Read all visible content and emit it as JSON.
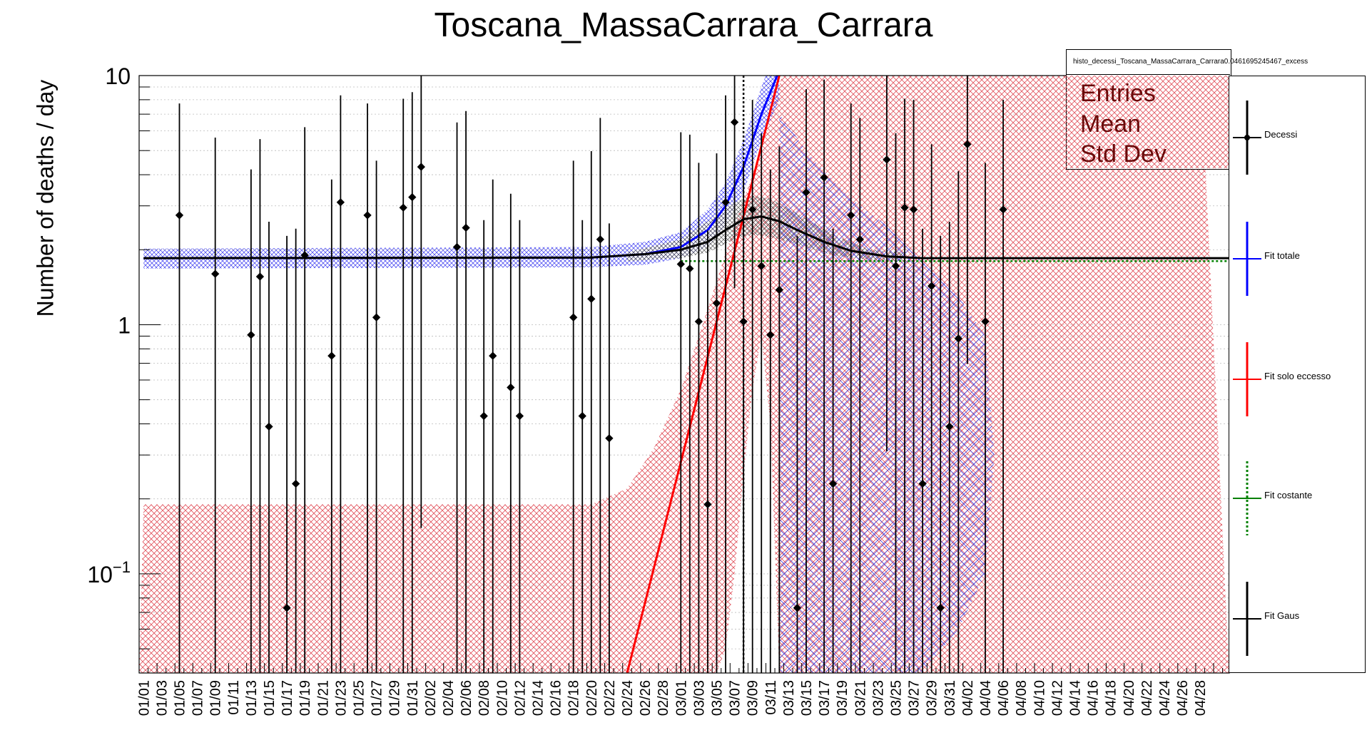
{
  "title": "Toscana_MassaCarrara_Carrara",
  "stats_box": {
    "title": "histo_decessi_Toscana_MassaCarrara_Carrara0.0461695245467_excess",
    "labels": [
      "Entries",
      "Mean",
      "Std Dev"
    ]
  },
  "legend": [
    {
      "label": "Decessi",
      "color": "#000000",
      "style": "points"
    },
    {
      "label": "Fit totale",
      "color": "#0000ff",
      "style": "line"
    },
    {
      "label": "Fit solo eccesso",
      "color": "#ff0000",
      "style": "line"
    },
    {
      "label": "Fit costante",
      "color": "#008000",
      "style": "dotted"
    },
    {
      "label": "Fit Gaus",
      "color": "#000000",
      "style": "line"
    }
  ],
  "colors": {
    "excess_band": "#e0505a",
    "total_band": "#3a3af0",
    "gaus_band": "#404040",
    "total": "#0000ff",
    "excess": "#ff0000",
    "const": "#008000",
    "gaus": "#000000"
  },
  "chart_data": {
    "type": "scatter",
    "title": "Toscana_MassaCarrara_Carrara",
    "ylabel": "Number of deaths / day",
    "xlabel": "",
    "yscale": "log",
    "ylim": [
      0.04,
      10
    ],
    "y_tick_labels": [
      {
        "value": 0.1,
        "label": "10^-1"
      },
      {
        "value": 1,
        "label": "1"
      },
      {
        "value": 10,
        "label": "10"
      }
    ],
    "x_tick_labels": [
      "01/01",
      "01/03",
      "01/05",
      "01/07",
      "01/09",
      "01/11",
      "01/13",
      "01/15",
      "01/17",
      "01/19",
      "01/21",
      "01/23",
      "01/25",
      "01/27",
      "01/29",
      "01/31",
      "02/02",
      "02/04",
      "02/06",
      "02/08",
      "02/10",
      "02/12",
      "02/14",
      "02/16",
      "02/18",
      "02/20",
      "02/22",
      "02/24",
      "02/26",
      "02/28",
      "03/01",
      "03/03",
      "03/05",
      "03/07",
      "03/09",
      "03/11",
      "03/13",
      "03/15",
      "03/17",
      "03/19",
      "03/21",
      "03/23",
      "03/25",
      "03/27",
      "03/29",
      "03/31",
      "04/02",
      "04/04",
      "04/06",
      "04/08",
      "04/10",
      "04/12",
      "04/14",
      "04/16",
      "04/18",
      "04/20",
      "04/22",
      "04/24",
      "04/26",
      "04/28"
    ],
    "vertical_marker": "03/08",
    "series": [
      {
        "name": "Decessi",
        "type": "points",
        "points": [
          {
            "x": "01/05",
            "y": 2.75
          },
          {
            "x": "01/09",
            "y": 1.6
          },
          {
            "x": "01/13",
            "y": 0.91
          },
          {
            "x": "01/14",
            "y": 1.56
          },
          {
            "x": "01/15",
            "y": 0.39
          },
          {
            "x": "01/17",
            "y": 0.073
          },
          {
            "x": "01/18",
            "y": 0.23
          },
          {
            "x": "01/19",
            "y": 1.9
          },
          {
            "x": "01/22",
            "y": 0.75
          },
          {
            "x": "01/23",
            "y": 3.1
          },
          {
            "x": "01/26",
            "y": 2.75
          },
          {
            "x": "01/27",
            "y": 1.07
          },
          {
            "x": "01/30",
            "y": 2.95
          },
          {
            "x": "01/31",
            "y": 3.25
          },
          {
            "x": "02/01",
            "y": 4.3
          },
          {
            "x": "02/05",
            "y": 2.05
          },
          {
            "x": "02/06",
            "y": 2.45
          },
          {
            "x": "02/08",
            "y": 0.43
          },
          {
            "x": "02/09",
            "y": 0.75
          },
          {
            "x": "02/11",
            "y": 0.56
          },
          {
            "x": "02/12",
            "y": 0.43
          },
          {
            "x": "02/18",
            "y": 1.07
          },
          {
            "x": "02/19",
            "y": 0.43
          },
          {
            "x": "02/20",
            "y": 1.27
          },
          {
            "x": "02/21",
            "y": 2.2
          },
          {
            "x": "02/22",
            "y": 0.35
          },
          {
            "x": "03/01",
            "y": 1.75
          },
          {
            "x": "03/02",
            "y": 1.68
          },
          {
            "x": "03/03",
            "y": 1.03
          },
          {
            "x": "03/04",
            "y": 0.19
          },
          {
            "x": "03/05",
            "y": 1.22
          },
          {
            "x": "03/06",
            "y": 3.1
          },
          {
            "x": "03/07",
            "y": 6.5
          },
          {
            "x": "03/08",
            "y": 1.03
          },
          {
            "x": "03/09",
            "y": 2.9
          },
          {
            "x": "03/10",
            "y": 1.72
          },
          {
            "x": "03/11",
            "y": 0.91
          },
          {
            "x": "03/12",
            "y": 1.38
          },
          {
            "x": "03/14",
            "y": 0.073
          },
          {
            "x": "03/15",
            "y": 3.4
          },
          {
            "x": "03/17",
            "y": 3.9
          },
          {
            "x": "03/18",
            "y": 0.23
          },
          {
            "x": "03/20",
            "y": 2.75
          },
          {
            "x": "03/21",
            "y": 2.2
          },
          {
            "x": "03/24",
            "y": 4.6
          },
          {
            "x": "03/25",
            "y": 1.72
          },
          {
            "x": "03/26",
            "y": 2.95
          },
          {
            "x": "03/27",
            "y": 2.9
          },
          {
            "x": "03/28",
            "y": 0.23
          },
          {
            "x": "03/29",
            "y": 1.43
          },
          {
            "x": "03/30",
            "y": 0.073
          },
          {
            "x": "03/31",
            "y": 0.39
          },
          {
            "x": "04/01",
            "y": 0.88
          },
          {
            "x": "04/02",
            "y": 5.3
          },
          {
            "x": "04/04",
            "y": 1.03
          },
          {
            "x": "04/06",
            "y": 2.9
          }
        ]
      },
      {
        "name": "Fit totale",
        "type": "line",
        "color": "#0000ff",
        "x": [
          "01/01",
          "02/20",
          "02/26",
          "03/01",
          "03/04",
          "03/06",
          "03/08",
          "03/10",
          "03/12"
        ],
        "y": [
          1.85,
          1.86,
          1.92,
          2.05,
          2.4,
          3.0,
          4.3,
          7.0,
          10.5
        ]
      },
      {
        "name": "Fit solo eccesso",
        "type": "line",
        "color": "#ff0000",
        "x": [
          "02/24",
          "03/12"
        ],
        "y": [
          0.04,
          10
        ]
      },
      {
        "name": "Fit costante",
        "type": "line",
        "color": "#008000",
        "x": [
          "03/01",
          "04/28"
        ],
        "y": [
          1.8,
          1.8
        ]
      },
      {
        "name": "Fit Gaus",
        "type": "line",
        "color": "#000000",
        "x": [
          "01/01",
          "02/20",
          "02/26",
          "03/01",
          "03/04",
          "03/06",
          "03/08",
          "03/10",
          "03/12",
          "03/14",
          "03/17",
          "03/20",
          "03/24",
          "03/28",
          "04/28"
        ],
        "y": [
          1.85,
          1.86,
          1.92,
          2.0,
          2.15,
          2.4,
          2.65,
          2.72,
          2.6,
          2.4,
          2.15,
          1.98,
          1.88,
          1.85,
          1.85
        ]
      }
    ]
  }
}
